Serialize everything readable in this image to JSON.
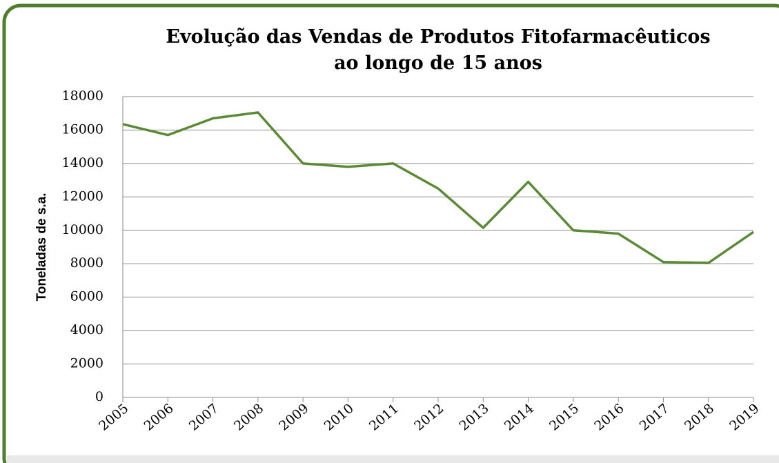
{
  "chart_data": {
    "type": "line",
    "title": [
      "Evolução das Vendas de Produtos Fitofarmacêuticos",
      "ao longo de 15 anos"
    ],
    "y_label": "Toneladas de s.a.",
    "categories": [
      "2005",
      "2006",
      "2007",
      "2008",
      "2009",
      "2010",
      "2011",
      "2012",
      "2013",
      "2014",
      "2015",
      "2016",
      "2017",
      "2018",
      "2019"
    ],
    "values": [
      16350,
      15700,
      16700,
      17050,
      14000,
      13800,
      14000,
      12500,
      10150,
      12900,
      10000,
      9800,
      8100,
      8050,
      9900
    ],
    "color": "#5a8a35",
    "ylim": [
      0,
      18000
    ],
    "yticks": [
      0,
      2000,
      4000,
      6000,
      8000,
      10000,
      12000,
      14000,
      16000,
      18000
    ],
    "grid": true
  }
}
